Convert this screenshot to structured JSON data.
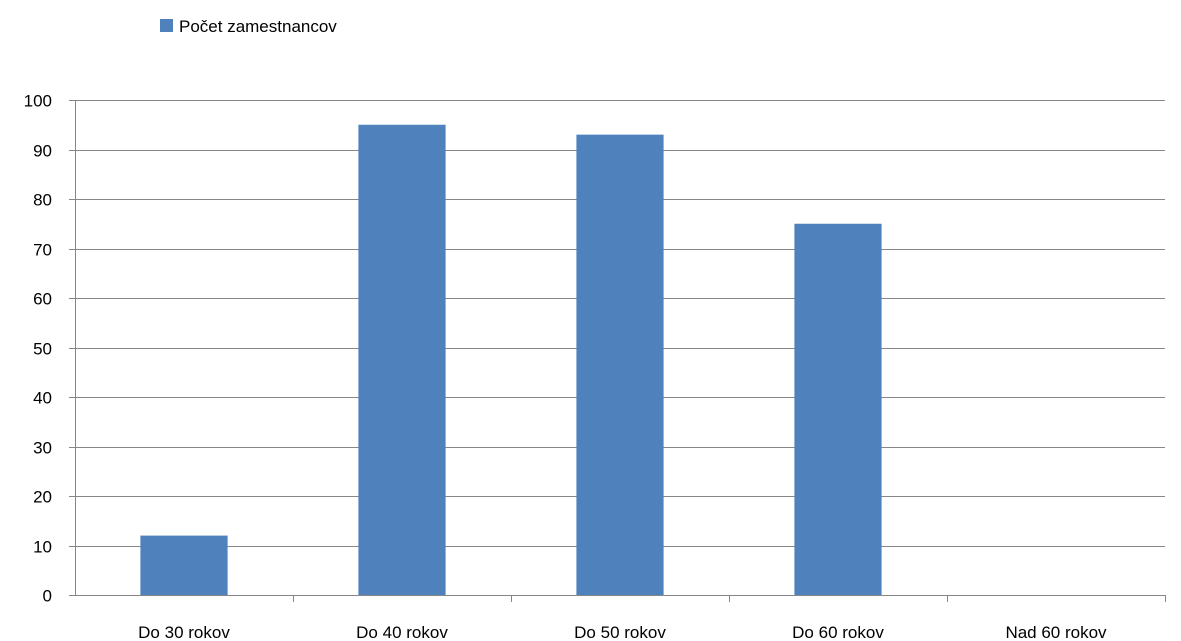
{
  "chart_data": {
    "type": "bar",
    "categories": [
      "Do 30 rokov",
      "Do 40 rokov",
      "Do 50 rokov",
      "Do 60 rokov",
      "Nad 60 rokov"
    ],
    "series": [
      {
        "name": "Počet zamestnancov",
        "values": [
          12,
          95,
          93,
          75,
          0
        ]
      }
    ],
    "yticks": [
      "0",
      "10",
      "20",
      "30",
      "40",
      "50",
      "60",
      "70",
      "80",
      "90",
      "100"
    ],
    "ylim": [
      0,
      100
    ],
    "grid": true,
    "legend": "top-left",
    "colors": {
      "bar": "#4F81BD",
      "grid": "#868686",
      "axis": "#868686"
    }
  }
}
